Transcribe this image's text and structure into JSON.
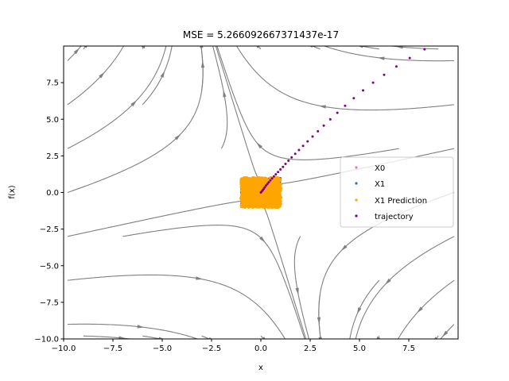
{
  "chart_data": {
    "type": "scatter",
    "title": "MSE = 5.266092667371437e-17",
    "xlabel": "x",
    "ylabel": "f(x)",
    "xlim": [
      -10,
      10
    ],
    "ylim": [
      -10,
      10
    ],
    "xticks": [
      -10.0,
      -7.5,
      -5.0,
      -2.5,
      0.0,
      2.5,
      5.0,
      7.5
    ],
    "xtick_labels": [
      "−10.0",
      "−7.5",
      "−5.0",
      "−2.5",
      "0.0",
      "2.5",
      "5.0",
      "7.5"
    ],
    "yticks": [
      -10.0,
      -7.5,
      -5.0,
      -2.5,
      0.0,
      2.5,
      5.0,
      7.5
    ],
    "ytick_labels": [
      "−10.0",
      "−7.5",
      "−5.0",
      "−2.5",
      "0.0",
      "2.5",
      "5.0",
      "7.5"
    ],
    "legend_position": "center-right",
    "background_field": "streamplot",
    "series": [
      {
        "name": "X0",
        "color": "#e377c2",
        "marker": "dot",
        "region": {
          "x": [
            -1,
            1
          ],
          "y": [
            -1,
            1
          ]
        }
      },
      {
        "name": "X1",
        "color": "#1f77b4",
        "marker": "dot",
        "region": {
          "x": [
            -1,
            1
          ],
          "y": [
            -1,
            1
          ]
        }
      },
      {
        "name": "X1 Prediction",
        "color": "#ffa500",
        "marker": "dot",
        "region": {
          "x": [
            -1,
            1
          ],
          "y": [
            -1,
            1
          ]
        }
      },
      {
        "name": "trajectory",
        "color": "#800080",
        "marker": "dot",
        "points": [
          [
            0.0,
            0.0
          ],
          [
            0.05,
            0.08
          ],
          [
            0.1,
            0.17
          ],
          [
            0.15,
            0.26
          ],
          [
            0.2,
            0.36
          ],
          [
            0.26,
            0.47
          ],
          [
            0.33,
            0.58
          ],
          [
            0.4,
            0.7
          ],
          [
            0.48,
            0.83
          ],
          [
            0.57,
            0.96
          ],
          [
            0.66,
            1.1
          ],
          [
            0.76,
            1.24
          ],
          [
            0.87,
            1.4
          ],
          [
            0.99,
            1.57
          ],
          [
            1.12,
            1.75
          ],
          [
            1.25,
            1.95
          ],
          [
            1.4,
            2.17
          ],
          [
            1.56,
            2.4
          ],
          [
            1.74,
            2.64
          ],
          [
            1.93,
            2.9
          ],
          [
            2.14,
            3.18
          ],
          [
            2.37,
            3.49
          ],
          [
            2.62,
            3.82
          ],
          [
            2.89,
            4.18
          ],
          [
            3.19,
            4.57
          ],
          [
            3.52,
            4.99
          ],
          [
            3.88,
            5.44
          ],
          [
            4.27,
            5.92
          ],
          [
            4.71,
            6.44
          ],
          [
            5.18,
            6.97
          ],
          [
            5.69,
            7.5
          ],
          [
            6.25,
            8.04
          ],
          [
            6.87,
            8.6
          ],
          [
            7.55,
            9.18
          ],
          [
            8.3,
            9.78
          ],
          [
            9.0,
            10.4
          ]
        ]
      }
    ]
  }
}
